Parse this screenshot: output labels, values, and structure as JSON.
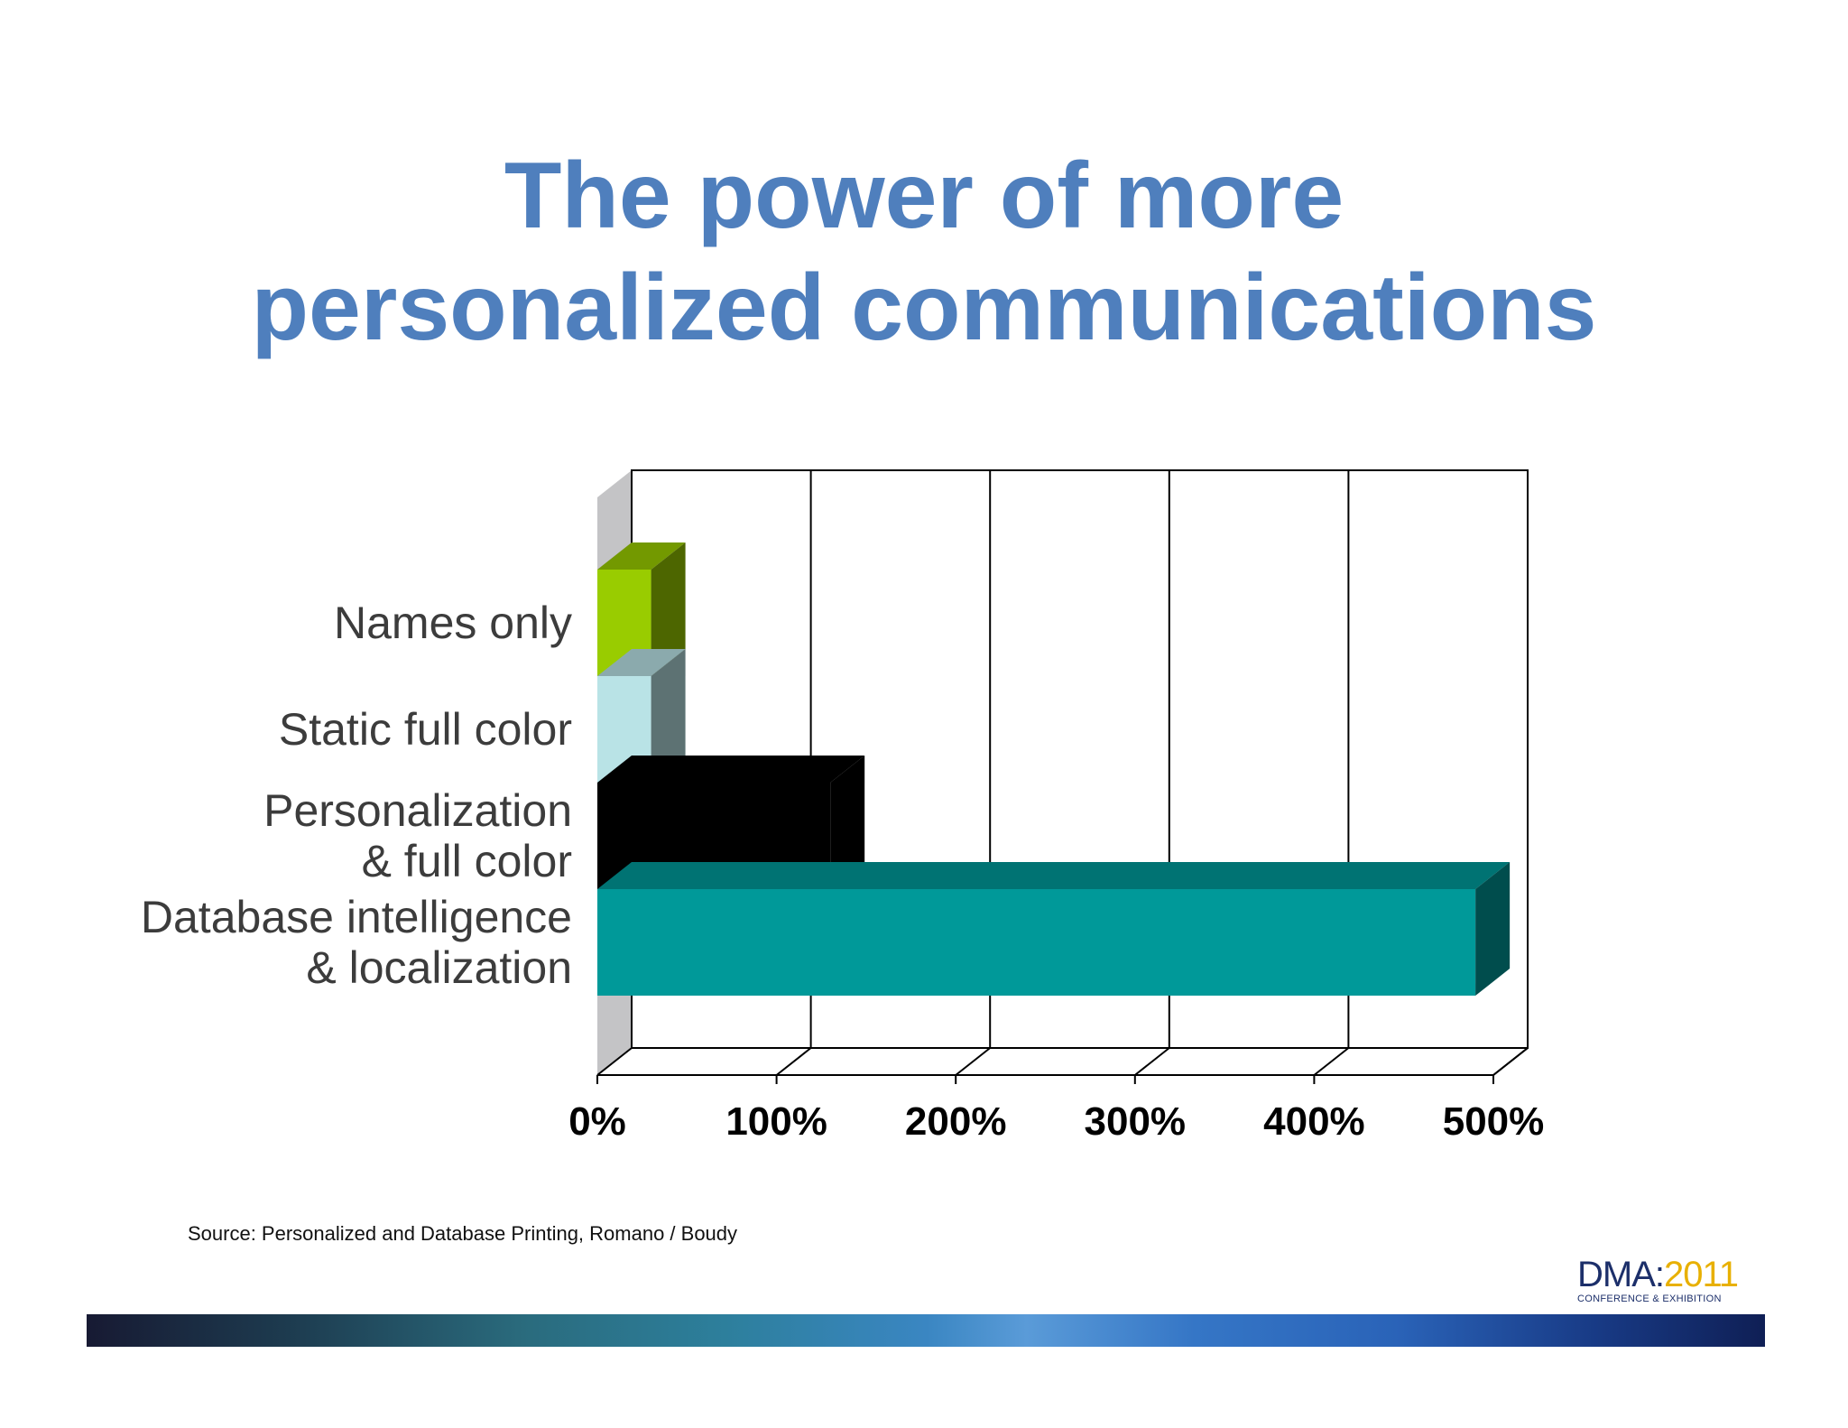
{
  "slide": {
    "title_lines": [
      "The power of more",
      "personalized communications"
    ],
    "source": "Source: Personalized and Database Printing, Romano / Boudy"
  },
  "logo": {
    "name": "DMA",
    "separator": ":",
    "year": "2011",
    "subtitle": "CONFERENCE & EXHIBITION"
  },
  "chart_data": {
    "type": "bar",
    "orientation": "horizontal",
    "style": "3d",
    "categories": [
      "Names only",
      "Static full color",
      "Personalization & full color",
      "Database intelligence & localization"
    ],
    "category_label_lines": [
      [
        "Names only"
      ],
      [
        "Static full color"
      ],
      [
        "Personalization",
        "& full color"
      ],
      [
        "Database intelligence",
        "& localization"
      ]
    ],
    "values": [
      30,
      30,
      130,
      490
    ],
    "colors": [
      "#99cc00",
      "#b9e3e6",
      "#000000",
      "#009999"
    ],
    "x_ticks": [
      "0%",
      "100%",
      "200%",
      "300%",
      "400%",
      "500%"
    ],
    "xlim": [
      0,
      500
    ],
    "grid": true,
    "legend": "none",
    "title": "",
    "xlabel": "",
    "ylabel": ""
  }
}
